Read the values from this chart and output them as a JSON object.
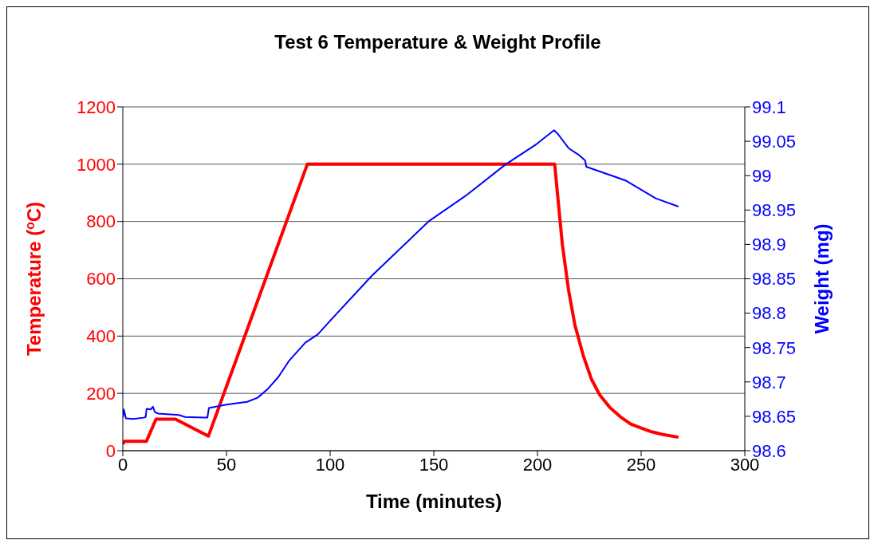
{
  "chart_data": {
    "type": "line",
    "title": "Test 6 Temperature & Weight Profile",
    "xlabel": "Time (minutes)",
    "ylabel": "Temperature  ($^{o}$C)",
    "y2label": "Weight (mg)",
    "xlim": [
      0,
      300
    ],
    "xticks": [
      0,
      50,
      100,
      150,
      200,
      250,
      300
    ],
    "ylim": [
      0,
      1200
    ],
    "yticks": [
      0,
      200,
      400,
      600,
      800,
      1000,
      1200
    ],
    "y2lim": [
      98.6,
      99.1
    ],
    "y2ticks": [
      98.6,
      98.65,
      98.7,
      98.75,
      98.8,
      98.85,
      98.9,
      98.95,
      99,
      99.05,
      99.1
    ],
    "grid": "y",
    "marker": "none",
    "line_style": "solid",
    "series": [
      {
        "color": "#ff0000",
        "x": [
          0,
          0.8,
          11.4,
          16,
          25.4,
          41.3,
          89,
          208.3,
          210,
          212,
          215,
          218,
          222,
          226,
          230,
          235,
          240,
          245,
          250,
          255,
          260,
          268
        ],
        "values": [
          23,
          33,
          33,
          110,
          110,
          51,
          1000,
          1000,
          870,
          720,
          560,
          440,
          334,
          250,
          195,
          150,
          118,
          93,
          79,
          66,
          57,
          47
        ]
      },
      {
        "color": "#0000ff",
        "axis": "y2",
        "x": [
          0,
          0.5,
          1.5,
          5,
          10,
          11,
          11.5,
          13.5,
          14.5,
          15.5,
          17,
          27,
          30,
          40,
          40.8,
          41.5,
          50,
          60,
          65,
          70,
          75,
          80,
          88,
          94,
          100,
          120,
          147.7,
          165.5,
          184.5,
          199.6,
          208,
          210,
          215,
          220,
          223,
          223.5,
          242.4,
          257,
          268
        ],
        "values": [
          98.648,
          98.66,
          98.647,
          98.646,
          98.648,
          98.649,
          98.661,
          98.66,
          98.664,
          98.656,
          98.654,
          98.652,
          98.649,
          98.648,
          98.648,
          98.662,
          98.667,
          98.671,
          98.677,
          98.69,
          98.707,
          98.73,
          98.757,
          98.769,
          98.789,
          98.854,
          98.934,
          98.971,
          99.016,
          99.046,
          99.066,
          99.06,
          99.04,
          99.03,
          99.022,
          99.013,
          98.993,
          98.967,
          98.955
        ]
      }
    ]
  }
}
